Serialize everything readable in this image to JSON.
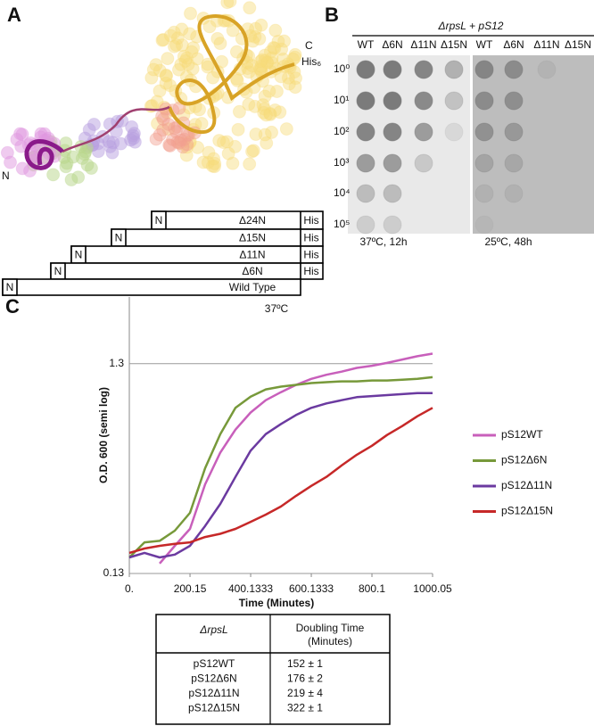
{
  "panel_labels": [
    "A",
    "B",
    "C"
  ],
  "structure": {
    "c_label": "C",
    "his_label": "His₆",
    "n_label": "N"
  },
  "constructs": [
    {
      "name": "Δ24N",
      "color": "#e8962c",
      "n": "N",
      "his": "His"
    },
    {
      "name": "Δ15N",
      "color": "#d32f2f",
      "n": "N",
      "his": "His"
    },
    {
      "name": "Δ11N",
      "color": "#6a3d9a",
      "n": "N",
      "his": "His"
    },
    {
      "name": "Δ6N",
      "color": "#6fa23a",
      "n": "N",
      "his": "His"
    },
    {
      "name": "Wild Type",
      "color": "#c24fb0",
      "n": "N"
    }
  ],
  "spot_assay": {
    "title": "ΔrpsL + pS12",
    "columns": [
      "WT",
      "Δ6N",
      "Δ11N",
      "Δ15N",
      "WT",
      "Δ6N",
      "Δ11N",
      "Δ15N"
    ],
    "dilutions": [
      "10⁰",
      "10¹",
      "10²",
      "10³",
      "10⁴",
      "10⁵"
    ],
    "conditions": [
      "37ºC, 12h",
      "25ºC, 48h"
    ]
  },
  "chart_data": {
    "type": "line",
    "title": "37ºC",
    "x_label": "Time (Minutes)",
    "y_label": "O.D. 600 (semi log)",
    "x": [
      0,
      50,
      100,
      150,
      200,
      250,
      300,
      350,
      400,
      450,
      500,
      550,
      600,
      650,
      700,
      750,
      800,
      850,
      900,
      950,
      1000
    ],
    "series": [
      {
        "name": "pS12WT",
        "color": "#c85fbb",
        "values": [
          null,
          null,
          0.145,
          0.176,
          0.212,
          0.346,
          0.49,
          0.63,
          0.76,
          0.87,
          0.95,
          1.03,
          1.1,
          1.15,
          1.19,
          1.24,
          1.27,
          1.31,
          1.36,
          1.41,
          1.45
        ]
      },
      {
        "name": "pS12Δ6N",
        "color": "#77993a",
        "values": [
          0.155,
          0.183,
          0.186,
          0.208,
          0.253,
          0.413,
          0.6,
          0.8,
          0.905,
          0.98,
          1.01,
          1.03,
          1.05,
          1.06,
          1.07,
          1.07,
          1.08,
          1.08,
          1.09,
          1.1,
          1.12
        ]
      },
      {
        "name": "pS12Δ11N",
        "color": "#6b3aa0",
        "values": [
          0.155,
          0.163,
          0.155,
          0.16,
          0.176,
          0.219,
          0.279,
          0.375,
          0.5,
          0.6,
          0.67,
          0.74,
          0.8,
          0.84,
          0.87,
          0.9,
          0.91,
          0.92,
          0.93,
          0.94,
          0.94
        ]
      },
      {
        "name": "pS12Δ15N",
        "color": "#c62828",
        "values": [
          0.163,
          0.171,
          0.176,
          0.18,
          0.183,
          0.194,
          0.201,
          0.212,
          0.229,
          0.248,
          0.271,
          0.305,
          0.34,
          0.375,
          0.425,
          0.478,
          0.528,
          0.594,
          0.655,
          0.73,
          0.8
        ]
      }
    ],
    "xlim": [
      0,
      1000.05
    ],
    "xticks": [
      {
        "value": 0,
        "label": "0."
      },
      200.15,
      400.1333,
      600.1333,
      800.1,
      1000.05
    ],
    "ylim": [
      0.13,
      2.7
    ],
    "yticks": [
      0.13,
      1.3
    ],
    "log_y": true,
    "grid": true,
    "legend": "right"
  },
  "table": {
    "header": {
      "strain": "ΔrpsL",
      "doubling_time": [
        "Doubling Time",
        "(Minutes)"
      ]
    },
    "rows": [
      [
        "pS12WT",
        "152 ± 1"
      ],
      [
        "pS12Δ6N",
        "176 ± 2"
      ],
      [
        "pS12Δ11N",
        "219 ± 4"
      ],
      [
        "pS12Δ15N",
        "322 ± 1"
      ]
    ]
  }
}
